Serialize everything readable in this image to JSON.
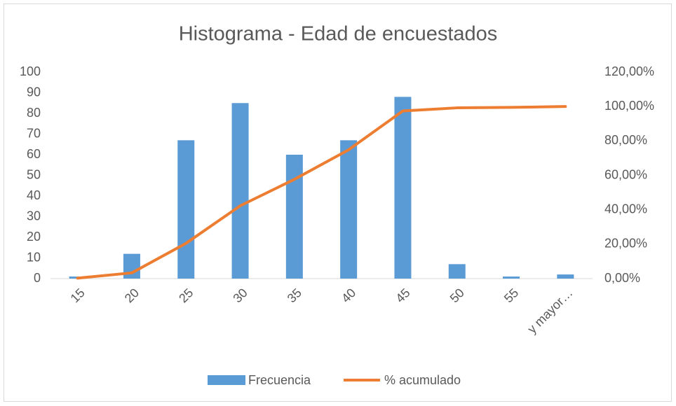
{
  "chart_data": {
    "type": "bar",
    "title": "Histograma - Edad de encuestados",
    "categories": [
      "15",
      "20",
      "25",
      "30",
      "35",
      "40",
      "45",
      "50",
      "55",
      "y mayor…"
    ],
    "series": [
      {
        "name": "Frecuencia",
        "type": "bar",
        "color": "#5b9bd5",
        "values": [
          1,
          12,
          67,
          85,
          60,
          67,
          88,
          7,
          1,
          2
        ]
      },
      {
        "name": "% acumulado",
        "type": "line",
        "axis": "y2",
        "color": "#ed7d31",
        "values": [
          0.26,
          3.33,
          20.51,
          42.31,
          57.69,
          74.87,
          97.44,
          99.23,
          99.49,
          100
        ]
      }
    ],
    "ylim": [
      0,
      100
    ],
    "yticks": [
      0,
      10,
      20,
      30,
      40,
      50,
      60,
      70,
      80,
      90,
      100
    ],
    "y2lim": [
      0,
      120
    ],
    "y2ticks": [
      {
        "value": 0,
        "label": "0,00%"
      },
      {
        "value": 20,
        "label": "20,00%"
      },
      {
        "value": 40,
        "label": "40,00%"
      },
      {
        "value": 60,
        "label": "60,00%"
      },
      {
        "value": 80,
        "label": "80,00%"
      },
      {
        "value": 100,
        "label": "100,00%"
      },
      {
        "value": 120,
        "label": "120,00%"
      }
    ],
    "grid": false,
    "legend": "bottom"
  }
}
